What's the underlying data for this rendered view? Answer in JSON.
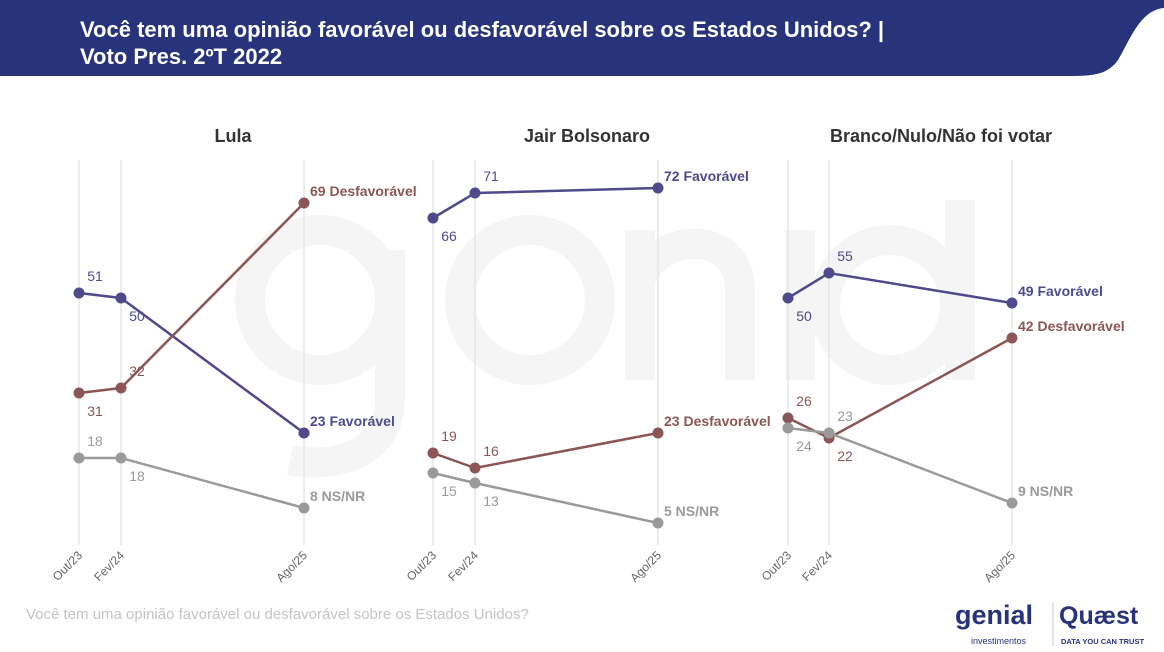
{
  "header": {
    "title_line1": "Você tem uma opinião favorável ou desfavorável sobre os Estados Unidos? |",
    "title_line2": "Voto Pres. 2ºT 2022",
    "bg_color": "#27337a"
  },
  "footnote": "Você tem uma opinião favorável ou desfavorável sobre os Estados Unidos?",
  "logos": {
    "genial": "genial",
    "genial_sub": "investimentos",
    "quaest": "Quæst",
    "quaest_sub": "DATA YOU CAN TRUST"
  },
  "watermark": {
    "main": "genial",
    "sub": "investimentos"
  },
  "chart_data": [
    {
      "type": "line",
      "title": "Lula",
      "categories": [
        "Out/23",
        "Fev/24",
        "Ago/25"
      ],
      "ylim": [
        0,
        75
      ],
      "grid": "vertical",
      "series": [
        {
          "name": "Favorável",
          "color": "#4f4a8b",
          "values": [
            51,
            50,
            23
          ],
          "end_label": "23 Favorável"
        },
        {
          "name": "Desfavorável",
          "color": "#8c5656",
          "values": [
            31,
            32,
            69
          ],
          "end_label": "69 Desfavorável"
        },
        {
          "name": "NS/NR",
          "color": "#9a9a9a",
          "values": [
            18,
            18,
            8
          ],
          "end_label": "8 NS/NR"
        }
      ]
    },
    {
      "type": "line",
      "title": "Jair Bolsonaro",
      "categories": [
        "Out/23",
        "Fev/24",
        "Ago/25"
      ],
      "ylim": [
        0,
        75
      ],
      "grid": "vertical",
      "series": [
        {
          "name": "Favorável",
          "color": "#4f4a8b",
          "values": [
            66,
            71,
            72
          ],
          "end_label": "72 Favorável"
        },
        {
          "name": "Desfavorável",
          "color": "#8c5656",
          "values": [
            19,
            16,
            23
          ],
          "end_label": "23 Desfavorável"
        },
        {
          "name": "NS/NR",
          "color": "#9a9a9a",
          "values": [
            15,
            13,
            5
          ],
          "end_label": "5 NS/NR"
        }
      ]
    },
    {
      "type": "line",
      "title": "Branco/Nulo/Não foi votar",
      "categories": [
        "Out/23",
        "Fev/24",
        "Ago/25"
      ],
      "ylim": [
        0,
        75
      ],
      "grid": "vertical",
      "series": [
        {
          "name": "Favorável",
          "color": "#4f4a8b",
          "values": [
            50,
            55,
            49
          ],
          "end_label": "49 Favorável"
        },
        {
          "name": "Desfavorável",
          "color": "#8c5656",
          "values": [
            26,
            22,
            42
          ],
          "end_label": "42 Desfavorável"
        },
        {
          "name": "NS/NR",
          "color": "#9a9a9a",
          "values": [
            24,
            23,
            9
          ],
          "end_label": "9 NS/NR"
        }
      ]
    }
  ]
}
